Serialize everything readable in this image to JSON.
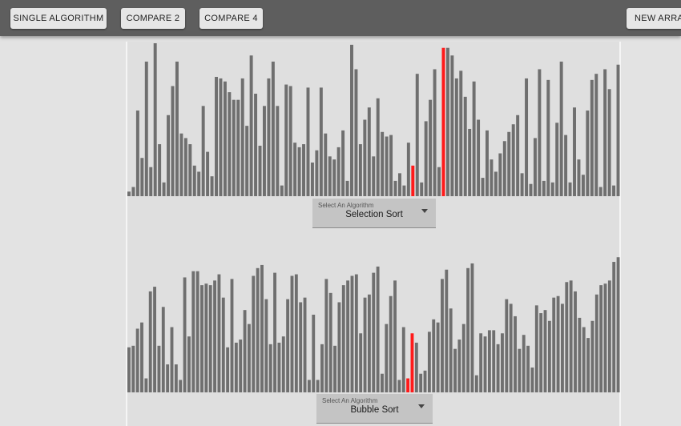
{
  "toolbar": {
    "single_label": "SINGLE ALGORITHM",
    "compare2_label": "COMPARE 2",
    "compare4_label": "COMPARE 4",
    "new_array_label": "NEW ARRAY"
  },
  "colors": {
    "bar": "#6f6f6f",
    "highlight": "#ff1a1a",
    "toolbar_bg": "#5e5e5e",
    "page_bg": "#e3e3e3"
  },
  "visualizers": [
    {
      "select_label": "Select An Algorithm",
      "algorithm": "Selection Sort",
      "max_value": 100,
      "values": [
        3,
        6,
        56,
        25,
        88,
        19,
        100,
        34,
        9,
        53,
        72,
        88,
        41,
        38,
        34,
        20,
        16,
        59,
        29,
        13,
        78,
        77,
        75,
        68,
        63,
        63,
        77,
        46,
        92,
        67,
        33,
        59,
        77,
        88,
        59,
        7,
        73,
        72,
        35,
        32,
        34,
        71,
        22,
        30,
        71,
        41,
        26,
        24,
        32,
        43,
        10,
        99,
        83,
        34,
        50,
        58,
        26,
        64,
        42,
        39,
        40,
        10,
        15,
        7,
        35,
        20,
        80,
        9,
        49,
        63,
        83,
        19,
        97,
        97,
        92,
        77,
        82,
        65,
        44,
        75,
        50,
        12,
        43,
        24,
        16,
        28,
        36,
        42,
        47,
        53,
        15,
        77,
        8,
        38,
        83,
        10,
        76,
        9,
        48,
        88,
        40,
        9,
        58,
        24,
        14,
        56,
        76,
        80,
        6,
        83,
        70,
        7,
        86
      ],
      "highlights": [
        65,
        72
      ]
    },
    {
      "select_label": "Select An Algorithm",
      "algorithm": "Bubble Sort",
      "max_value": 100,
      "values": [
        29,
        30,
        41,
        45,
        9,
        65,
        68,
        30,
        55,
        18,
        42,
        18,
        8,
        74,
        36,
        78,
        78,
        69,
        70,
        69,
        72,
        76,
        61,
        29,
        73,
        32,
        34,
        53,
        44,
        75,
        80,
        82,
        60,
        31,
        77,
        32,
        36,
        60,
        75,
        76,
        58,
        61,
        8,
        50,
        8,
        31,
        73,
        64,
        30,
        58,
        69,
        72,
        75,
        76,
        38,
        61,
        63,
        77,
        81,
        12,
        44,
        62,
        72,
        8,
        42,
        9,
        38,
        32,
        12,
        14,
        39,
        47,
        45,
        73,
        79,
        54,
        28,
        34,
        44,
        80,
        83,
        11,
        38,
        36,
        40,
        40,
        31,
        38,
        60,
        57,
        49,
        28,
        37,
        30,
        16,
        56,
        51,
        53,
        46,
        61,
        62,
        57,
        71,
        72,
        65,
        48,
        42,
        35,
        46,
        63,
        69,
        70,
        72,
        84,
        87
      ],
      "highlights": [
        65,
        66
      ]
    }
  ]
}
